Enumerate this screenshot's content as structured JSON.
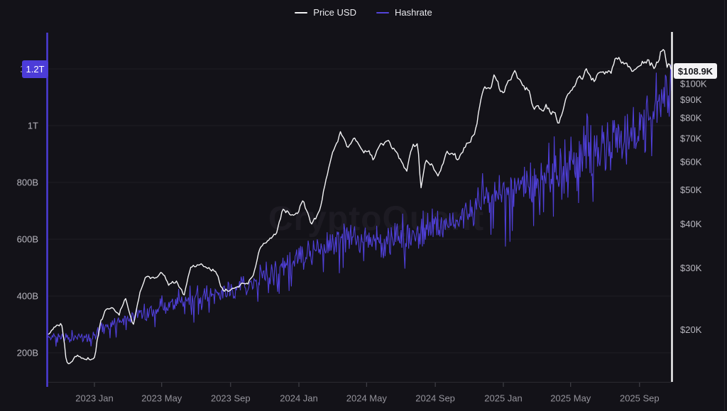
{
  "legend": {
    "items": [
      {
        "label": "Price USD",
        "color": "#f2f2f4"
      },
      {
        "label": "Hashrate",
        "color": "#5344d9"
      }
    ]
  },
  "watermark": {
    "text": "CryptoQuant"
  },
  "badges": {
    "hashrate": {
      "label": "1.2T",
      "bg": "#4c3cd8",
      "fg": "#ffffff"
    },
    "price": {
      "label": "$108.9K",
      "bg": "#f4f3f5",
      "fg": "#17171c"
    }
  },
  "colors": {
    "background": "#131218",
    "grid": "#1f1e25",
    "axis_line": "#2b2a31",
    "tick_mark": "#4a4951",
    "x_label": "#94939b",
    "y_label": "#b8b7bf",
    "left_accent": "#4c3cd8",
    "right_accent": "#f2f2f2",
    "right_border": "#242329"
  },
  "chart_data": {
    "type": "line",
    "title": "",
    "x_axis": {
      "range": [
        2022.771,
        2025.826
      ],
      "ticks": [
        {
          "label": "2023 Jan",
          "t": 2023.0
        },
        {
          "label": "2023 May",
          "t": 2023.329
        },
        {
          "label": "2023 Sep",
          "t": 2023.666
        },
        {
          "label": "2024 Jan",
          "t": 2024.0
        },
        {
          "label": "2024 May",
          "t": 2024.331
        },
        {
          "label": "2024 Sep",
          "t": 2024.667
        },
        {
          "label": "2025 Jan",
          "t": 2025.0
        },
        {
          "label": "2025 May",
          "t": 2025.329
        },
        {
          "label": "2025 Sep",
          "t": 2025.666
        }
      ]
    },
    "left_axis": {
      "name": "Hashrate",
      "scale": "linear",
      "unit": "H/s",
      "visible_value_range": [
        97.5,
        1330
      ],
      "ticks": [
        {
          "label": "200B",
          "v": 200
        },
        {
          "label": "400B",
          "v": 400
        },
        {
          "label": "600B",
          "v": 600
        },
        {
          "label": "800B",
          "v": 800
        },
        {
          "label": "1T",
          "v": 1000
        },
        {
          "label": "1.2T",
          "v": 1200
        }
      ]
    },
    "right_axis": {
      "name": "Price USD",
      "scale": "log",
      "unit": "USD (thousands)",
      "ticks": [
        {
          "label": "$20K",
          "v": 20
        },
        {
          "label": "$30K",
          "v": 30
        },
        {
          "label": "$40K",
          "v": 40
        },
        {
          "label": "$50K",
          "v": 50
        },
        {
          "label": "$60K",
          "v": 60
        },
        {
          "label": "$70K",
          "v": 70
        },
        {
          "label": "$80K",
          "v": 80
        },
        {
          "label": "$90K",
          "v": 90
        },
        {
          "label": "$100K",
          "v": 100
        }
      ]
    },
    "series": [
      {
        "name": "Price USD",
        "axis": "right",
        "color": "#f5f5f7",
        "current_label": "$108.9K",
        "current_value": 108.9,
        "anchors": [
          [
            2022.771,
            19.3
          ],
          [
            2022.8,
            20.3
          ],
          [
            2022.84,
            20.9
          ],
          [
            2022.862,
            16.3
          ],
          [
            2022.875,
            15.9
          ],
          [
            2022.91,
            16.9
          ],
          [
            2022.95,
            16.5
          ],
          [
            2023.0,
            16.6
          ],
          [
            2023.03,
            21.1
          ],
          [
            2023.06,
            22.9
          ],
          [
            2023.09,
            23.2
          ],
          [
            2023.12,
            21.9
          ],
          [
            2023.15,
            24.7
          ],
          [
            2023.19,
            20.4
          ],
          [
            2023.22,
            25.1
          ],
          [
            2023.25,
            28.3
          ],
          [
            2023.3,
            28.1
          ],
          [
            2023.33,
            29.3
          ],
          [
            2023.36,
            26.9
          ],
          [
            2023.4,
            27.3
          ],
          [
            2023.44,
            25.2
          ],
          [
            2023.47,
            30.2
          ],
          [
            2023.52,
            30.6
          ],
          [
            2023.56,
            29.9
          ],
          [
            2023.6,
            29.1
          ],
          [
            2023.62,
            26.1
          ],
          [
            2023.67,
            25.9
          ],
          [
            2023.71,
            26.9
          ],
          [
            2023.75,
            27.2
          ],
          [
            2023.78,
            28.6
          ],
          [
            2023.81,
            34.3
          ],
          [
            2023.86,
            36.6
          ],
          [
            2023.89,
            37.4
          ],
          [
            2023.92,
            43.9
          ],
          [
            2023.96,
            42.9
          ],
          [
            2023.99,
            42.4
          ],
          [
            2024.02,
            46.6
          ],
          [
            2024.06,
            39.7
          ],
          [
            2024.1,
            43.2
          ],
          [
            2024.13,
            52.1
          ],
          [
            2024.16,
            62.4
          ],
          [
            2024.19,
            68.4
          ],
          [
            2024.205,
            73.1
          ],
          [
            2024.24,
            65.4
          ],
          [
            2024.27,
            70.8
          ],
          [
            2024.31,
            63.9
          ],
          [
            2024.34,
            64.9
          ],
          [
            2024.365,
            61.3
          ],
          [
            2024.4,
            67.6
          ],
          [
            2024.44,
            68.4
          ],
          [
            2024.47,
            64.8
          ],
          [
            2024.5,
            60.4
          ],
          [
            2024.525,
            56.1
          ],
          [
            2024.555,
            66.7
          ],
          [
            2024.58,
            67.8
          ],
          [
            2024.597,
            49.9
          ],
          [
            2024.62,
            60.8
          ],
          [
            2024.65,
            58.8
          ],
          [
            2024.683,
            54.2
          ],
          [
            2024.72,
            63.5
          ],
          [
            2024.75,
            63.8
          ],
          [
            2024.78,
            60.7
          ],
          [
            2024.82,
            67.2
          ],
          [
            2024.845,
            69.4
          ],
          [
            2024.87,
            75.9
          ],
          [
            2024.89,
            90.9
          ],
          [
            2024.91,
            98.2
          ],
          [
            2024.935,
            95.8
          ],
          [
            2024.958,
            106.1
          ],
          [
            2024.98,
            97.4
          ],
          [
            2025.0,
            93.6
          ],
          [
            2025.02,
            102.1
          ],
          [
            2025.045,
            104.7
          ],
          [
            2025.057,
            108.9
          ],
          [
            2025.08,
            102.0
          ],
          [
            2025.1,
            97.7
          ],
          [
            2025.125,
            95.9
          ],
          [
            2025.148,
            84.4
          ],
          [
            2025.17,
            85.9
          ],
          [
            2025.19,
            83.1
          ],
          [
            2025.21,
            86.9
          ],
          [
            2025.23,
            82.7
          ],
          [
            2025.255,
            82.4
          ],
          [
            2025.27,
            76.4
          ],
          [
            2025.29,
            84.6
          ],
          [
            2025.315,
            94.3
          ],
          [
            2025.34,
            97.0
          ],
          [
            2025.36,
            103.9
          ],
          [
            2025.385,
            103.6
          ],
          [
            2025.405,
            109.5
          ],
          [
            2025.425,
            105.4
          ],
          [
            2025.445,
            101.7
          ],
          [
            2025.465,
            106.8
          ],
          [
            2025.49,
            107.8
          ],
          [
            2025.51,
            107.3
          ],
          [
            2025.53,
            108.9
          ],
          [
            2025.545,
            118.1
          ],
          [
            2025.56,
            117.4
          ],
          [
            2025.58,
            115.1
          ],
          [
            2025.6,
            113.6
          ],
          [
            2025.62,
            111.1
          ],
          [
            2025.636,
            108.6
          ],
          [
            2025.655,
            111.6
          ],
          [
            2025.67,
            112.4
          ],
          [
            2025.69,
            115.9
          ],
          [
            2025.71,
            116.9
          ],
          [
            2025.726,
            112.6
          ],
          [
            2025.74,
            112.1
          ],
          [
            2025.755,
            115.4
          ],
          [
            2025.77,
            122.4
          ],
          [
            2025.786,
            125.9
          ],
          [
            2025.8,
            110.6
          ],
          [
            2025.812,
            114.4
          ],
          [
            2025.826,
            108.9
          ]
        ]
      },
      {
        "name": "Hashrate",
        "axis": "left",
        "color": "#4f3fd8",
        "current_label": "1.2T",
        "current_value": 1200,
        "anchors": [
          [
            2022.771,
            252
          ],
          [
            2022.83,
            262
          ],
          [
            2022.88,
            248
          ],
          [
            2022.93,
            261
          ],
          [
            2022.97,
            245
          ],
          [
            2023.0,
            268
          ],
          [
            2023.08,
            299
          ],
          [
            2023.17,
            326
          ],
          [
            2023.25,
            341
          ],
          [
            2023.33,
            361
          ],
          [
            2023.42,
            376
          ],
          [
            2023.5,
            391
          ],
          [
            2023.58,
            403
          ],
          [
            2023.67,
            418
          ],
          [
            2023.75,
            441
          ],
          [
            2023.83,
            462
          ],
          [
            2023.92,
            501
          ],
          [
            2024.0,
            531
          ],
          [
            2024.08,
            561
          ],
          [
            2024.17,
            591
          ],
          [
            2024.25,
            611
          ],
          [
            2024.33,
            601
          ],
          [
            2024.42,
            589
          ],
          [
            2024.5,
            602
          ],
          [
            2024.58,
            617
          ],
          [
            2024.67,
            641
          ],
          [
            2024.75,
            671
          ],
          [
            2024.83,
            701
          ],
          [
            2024.92,
            741
          ],
          [
            2025.0,
            771
          ],
          [
            2025.08,
            791
          ],
          [
            2025.17,
            811
          ],
          [
            2025.25,
            851
          ],
          [
            2025.33,
            871
          ],
          [
            2025.42,
            899
          ],
          [
            2025.5,
            921
          ],
          [
            2025.58,
            951
          ],
          [
            2025.67,
            991
          ],
          [
            2025.75,
            1051
          ],
          [
            2025.79,
            1088
          ],
          [
            2025.826,
            1160
          ]
        ]
      }
    ],
    "texture": {
      "seed": 11,
      "hashrate_amp": [
        20,
        148
      ],
      "hashrate_downspike_prob": 0.08,
      "hashrate_upspike_prob": 0.05,
      "price_rel_noise": [
        0.016,
        0.028
      ],
      "hashrate_points": 820,
      "price_points": 480
    }
  }
}
